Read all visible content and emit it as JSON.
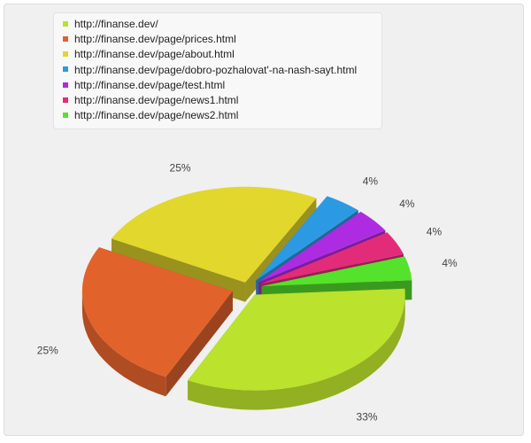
{
  "chart_data": {
    "type": "pie",
    "title": "",
    "series": [
      {
        "label": "http://finanse.dev/",
        "percent": 33,
        "percent_label": "33%",
        "color": "#bbe22c"
      },
      {
        "label": "http://finanse.dev/page/prices.html",
        "percent": 25,
        "percent_label": "25%",
        "color": "#e2622c"
      },
      {
        "label": "http://finanse.dev/page/about.html",
        "percent": 25,
        "percent_label": "25%",
        "color": "#e2d72c"
      },
      {
        "label": "http://finanse.dev/page/dobro-pozhalovat'-na-nash-sayt.html",
        "percent": 4,
        "percent_label": "4%",
        "color": "#2c9ae2"
      },
      {
        "label": "http://finanse.dev/page/test.html",
        "percent": 4,
        "percent_label": "4%",
        "color": "#ad2ce2"
      },
      {
        "label": "http://finanse.dev/page/news1.html",
        "percent": 4,
        "percent_label": "4%",
        "color": "#e22c7a"
      },
      {
        "label": "http://finanse.dev/page/news2.html",
        "percent": 4,
        "percent_label": "4%",
        "color": "#55e22c"
      }
    ],
    "style": "3d-exploded",
    "legend_position": "top-left"
  }
}
